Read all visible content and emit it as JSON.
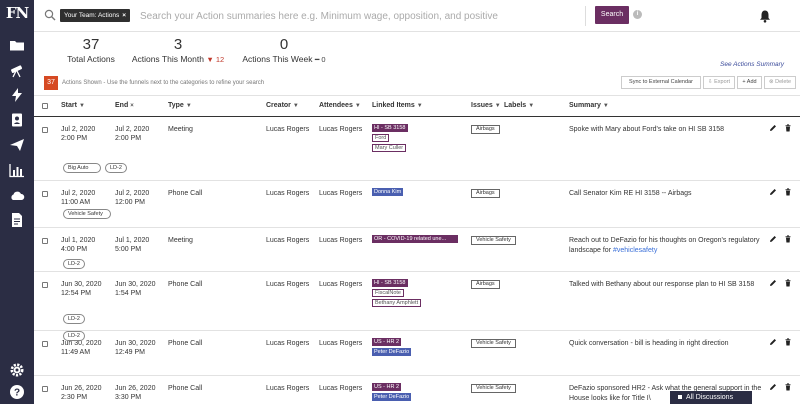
{
  "sidebar": {
    "logo": "FN"
  },
  "topbar": {
    "team_badge": "Your Team: Actions",
    "team_badge_close": "×",
    "search_placeholder": "Search your Action summaries here e.g. Minimum wage, opposition, and positive",
    "search_button": "Search",
    "info_glyph": "i"
  },
  "stats": {
    "total_actions": {
      "value": "37",
      "label": "Total Actions"
    },
    "this_month": {
      "value": "3",
      "label": "Actions This Month",
      "delta": "▼ 12"
    },
    "this_week": {
      "value": "0",
      "label": "Actions This Week",
      "delta": "━ 0"
    },
    "see_summary": "See Actions Summary"
  },
  "toolbar": {
    "count": "37",
    "hint": "Actions Shown - Use the funnels next to the categories to refine your search",
    "sync": "Sync to External Calendar",
    "export": "⇩ Export",
    "add": "+ Add",
    "delete": "⊗ Delete"
  },
  "table": {
    "headers": {
      "start": "Start",
      "end": "End",
      "type": "Type",
      "creator": "Creator",
      "attendees": "Attendees",
      "linked": "Linked Items",
      "issues": "Issues",
      "labels": "Labels",
      "summary": "Summary"
    },
    "filter_glyph": "▼",
    "sort_glyph": "×",
    "rows": [
      {
        "start_date": "Jul 2, 2020",
        "start_time": "2:00 PM",
        "end_date": "Jul 2, 2020",
        "end_time": "2:00 PM",
        "type": "Meeting",
        "creator": "Lucas Rogers",
        "attendees": "Lucas Rogers",
        "linked": [
          {
            "text": "HI - SB 3158",
            "style": "purple"
          },
          {
            "text": "Ford",
            "style": "outline"
          },
          {
            "text": "Mary Culler",
            "style": "outline"
          }
        ],
        "issue": "Airbags",
        "summary": "Spoke with Mary about Ford's take on HI SB 3158",
        "summary_link": "",
        "chips": [
          "Big Auto",
          "LD-2"
        ]
      },
      {
        "start_date": "Jul 2, 2020",
        "start_time": "11:00 AM",
        "end_date": "Jul 2, 2020",
        "end_time": "12:00 PM",
        "type": "Phone Call",
        "creator": "Lucas Rogers",
        "attendees": "Lucas Rogers",
        "linked": [
          {
            "text": "Donna Kim",
            "style": "blue"
          }
        ],
        "issue": "Airbags",
        "summary": "Call Senator Kim RE HI 3158 -- Airbags",
        "summary_link": "",
        "chips": [
          "Vehicle Safety"
        ]
      },
      {
        "start_date": "Jul 1, 2020",
        "start_time": "4:00 PM",
        "end_date": "Jul 1, 2020",
        "end_time": "5:00 PM",
        "type": "Meeting",
        "creator": "Lucas Rogers",
        "attendees": "Lucas Rogers",
        "linked": [
          {
            "text": "OR - COVID-19 related une...",
            "style": "purple"
          }
        ],
        "issue": "Vehicle Safety",
        "summary": "Reach out to DeFazio for his thoughts on Oregon's regulatory landscape for",
        "summary_link": "#vehiclesafety",
        "chips": [
          "LD-2"
        ]
      },
      {
        "start_date": "Jun 30, 2020",
        "start_time": "12:54 PM",
        "end_date": "Jun 30, 2020",
        "end_time": "1:54 PM",
        "type": "Phone Call",
        "creator": "Lucas Rogers",
        "attendees": "Lucas Rogers",
        "linked": [
          {
            "text": "HI - SB 3158",
            "style": "purple"
          },
          {
            "text": "FiscalNote",
            "style": "outline"
          },
          {
            "text": "Bethany Amphlett",
            "style": "outline"
          }
        ],
        "issue": "Airbags",
        "summary": "Talked with Bethany about our response plan to HI SB 3158",
        "summary_link": "",
        "chips": [
          "LD-2"
        ]
      },
      {
        "start_date": "Jun 30, 2020",
        "start_time": "11:49 AM",
        "end_date": "Jun 30, 2020",
        "end_time": "12:49 PM",
        "type": "Phone Call",
        "creator": "Lucas Rogers",
        "attendees": "Lucas Rogers",
        "linked": [
          {
            "text": "US - HR 2",
            "style": "purple"
          },
          {
            "text": "Peter DeFazio",
            "style": "blue"
          }
        ],
        "issue": "Vehicle Safety",
        "summary": "Quick conversation - bill is heading in right direction",
        "summary_link": "",
        "chips": [
          "LD-2"
        ]
      },
      {
        "start_date": "Jun 26, 2020",
        "start_time": "2:30 PM",
        "end_date": "Jun 26, 2020",
        "end_time": "3:30 PM",
        "type": "Phone Call",
        "creator": "Lucas Rogers",
        "attendees": "Lucas Rogers",
        "linked": [
          {
            "text": "US - HR 2",
            "style": "purple"
          },
          {
            "text": "Peter DeFazio",
            "style": "blue"
          }
        ],
        "issue": "Vehicle Safety",
        "summary": "DeFazio sponsored HR2 - Ask what the general support in the House looks like for Title I\\",
        "summary_link": "",
        "chips": []
      }
    ]
  },
  "discussions": {
    "label": "All Discussions"
  },
  "colors": {
    "sidebar": "#2b2d44",
    "brand": "#6b2e62",
    "accent_blue": "#4a5fb0",
    "alert": "#d64a23"
  }
}
